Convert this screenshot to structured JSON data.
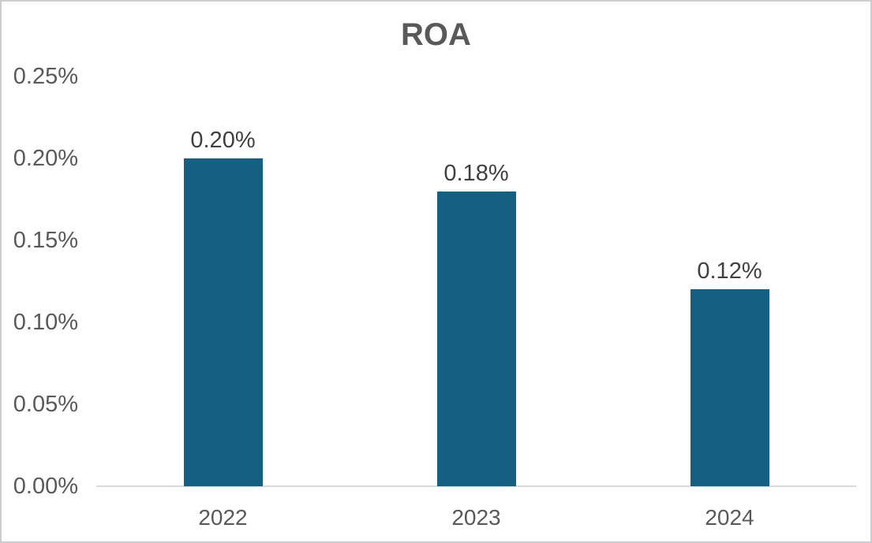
{
  "chart_data": {
    "type": "bar",
    "title": "ROA",
    "categories": [
      "2022",
      "2023",
      "2024"
    ],
    "values": [
      0.2,
      0.18,
      0.12
    ],
    "data_labels": [
      "0.20%",
      "0.18%",
      "0.12%"
    ],
    "units": "percent",
    "xlabel": "",
    "ylabel": "",
    "ylim": [
      0,
      0.25
    ],
    "yticks": [
      {
        "value": 0.0,
        "label": "0.00%"
      },
      {
        "value": 0.05,
        "label": "0.05%"
      },
      {
        "value": 0.1,
        "label": "0.10%"
      },
      {
        "value": 0.15,
        "label": "0.15%"
      },
      {
        "value": 0.2,
        "label": "0.20%"
      },
      {
        "value": 0.25,
        "label": "0.25%"
      }
    ],
    "grid": false,
    "legend_position": "none",
    "colors": {
      "bar": "#156082",
      "title_text": "#595959",
      "axis_text": "#595959",
      "data_label_text": "#404040",
      "axis_line": "#D9D9D9",
      "background": "#FFFFFF",
      "border": "#CBCED1"
    }
  }
}
